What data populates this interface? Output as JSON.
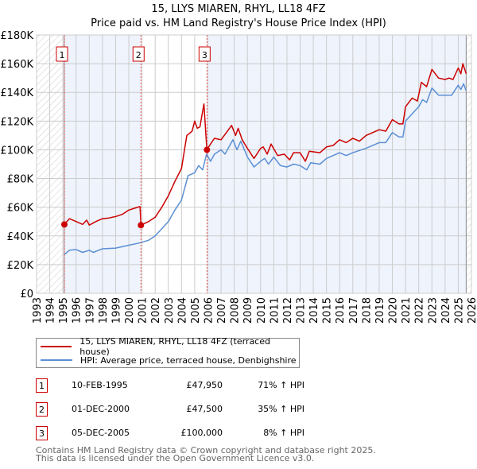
{
  "chart_data": {
    "type": "line",
    "title": "15, LLYS MIAREN, RHYL, LL18 4FZ",
    "subtitle": "Price paid vs. HM Land Registry's House Price Index (HPI)",
    "xlim": [
      1993,
      2026
    ],
    "ylim": [
      0,
      180000
    ],
    "y_ticks": [
      {
        "v": 0,
        "label": "£0"
      },
      {
        "v": 20000,
        "label": "£20K"
      },
      {
        "v": 40000,
        "label": "£40K"
      },
      {
        "v": 60000,
        "label": "£60K"
      },
      {
        "v": 80000,
        "label": "£80K"
      },
      {
        "v": 100000,
        "label": "£100K"
      },
      {
        "v": 120000,
        "label": "£120K"
      },
      {
        "v": 140000,
        "label": "£140K"
      },
      {
        "v": 160000,
        "label": "£160K"
      },
      {
        "v": 180000,
        "label": "£180K"
      }
    ],
    "x_ticks": [
      "1993",
      "1994",
      "1995",
      "1996",
      "1997",
      "1998",
      "1999",
      "2000",
      "2001",
      "2002",
      "2003",
      "2004",
      "2005",
      "2006",
      "2007",
      "2008",
      "2009",
      "2010",
      "2011",
      "2012",
      "2013",
      "2014",
      "2015",
      "2016",
      "2017",
      "2018",
      "2019",
      "2020",
      "2021",
      "2022",
      "2023",
      "2024",
      "2025",
      "2026"
    ],
    "grid": true,
    "data_start": 1995.1,
    "data_end": 2025.6,
    "series": [
      {
        "name": "15, LLYS MIAREN, RHYL, LL18 4FZ (terraced house)",
        "color": "#cc0000",
        "points": [
          [
            1995.1,
            47950
          ],
          [
            1995.5,
            52000
          ],
          [
            1996,
            50000
          ],
          [
            1996.5,
            48000
          ],
          [
            1996.8,
            51000
          ],
          [
            1997,
            47500
          ],
          [
            1997.5,
            50000
          ],
          [
            1998,
            52000
          ],
          [
            1998.5,
            52500
          ],
          [
            1999,
            53500
          ],
          [
            1999.5,
            55000
          ],
          [
            2000,
            58000
          ],
          [
            2000.5,
            59500
          ],
          [
            2000.85,
            60500
          ],
          [
            2000.92,
            47500
          ],
          [
            2001.5,
            50000
          ],
          [
            2002,
            53000
          ],
          [
            2002.5,
            60000
          ],
          [
            2003,
            68000
          ],
          [
            2003.5,
            78000
          ],
          [
            2004,
            87000
          ],
          [
            2004.4,
            110000
          ],
          [
            2004.8,
            113000
          ],
          [
            2005,
            120000
          ],
          [
            2005.2,
            115000
          ],
          [
            2005.4,
            116000
          ],
          [
            2005.7,
            132000
          ],
          [
            2005.92,
            100000
          ],
          [
            2006.2,
            104000
          ],
          [
            2006.5,
            108000
          ],
          [
            2007,
            107000
          ],
          [
            2007.4,
            112000
          ],
          [
            2007.8,
            117000
          ],
          [
            2008.1,
            110000
          ],
          [
            2008.3,
            115000
          ],
          [
            2008.6,
            107000
          ],
          [
            2009,
            101000
          ],
          [
            2009.5,
            94000
          ],
          [
            2010,
            101000
          ],
          [
            2010.2,
            102000
          ],
          [
            2010.5,
            97000
          ],
          [
            2010.8,
            104000
          ],
          [
            2011.3,
            96000
          ],
          [
            2011.8,
            97000
          ],
          [
            2012.2,
            93000
          ],
          [
            2012.5,
            98000
          ],
          [
            2013,
            98000
          ],
          [
            2013.4,
            92000
          ],
          [
            2013.7,
            99000
          ],
          [
            2014.5,
            98000
          ],
          [
            2015,
            102000
          ],
          [
            2015.5,
            103000
          ],
          [
            2016,
            107000
          ],
          [
            2016.5,
            105000
          ],
          [
            2017,
            108000
          ],
          [
            2017.5,
            106000
          ],
          [
            2018,
            110000
          ],
          [
            2018.5,
            112000
          ],
          [
            2019,
            114000
          ],
          [
            2019.5,
            113000
          ],
          [
            2020,
            121000
          ],
          [
            2020.5,
            118000
          ],
          [
            2020.8,
            118000
          ],
          [
            2021,
            130000
          ],
          [
            2021.5,
            136000
          ],
          [
            2021.9,
            134000
          ],
          [
            2022.2,
            147000
          ],
          [
            2022.6,
            144000
          ],
          [
            2023,
            156000
          ],
          [
            2023.5,
            150000
          ],
          [
            2024,
            149000
          ],
          [
            2024.3,
            150000
          ],
          [
            2024.6,
            149000
          ],
          [
            2025,
            157000
          ],
          [
            2025.2,
            153000
          ],
          [
            2025.35,
            160000
          ],
          [
            2025.6,
            153000
          ]
        ]
      },
      {
        "name": "HPI: Average price, terraced house, Denbighshire",
        "color": "#5b8fd4",
        "points": [
          [
            1995.1,
            27000
          ],
          [
            1995.5,
            30000
          ],
          [
            1996,
            30500
          ],
          [
            1996.5,
            28500
          ],
          [
            1997,
            30000
          ],
          [
            1997.3,
            28500
          ],
          [
            1998,
            31000
          ],
          [
            1999,
            31500
          ],
          [
            2000,
            33500
          ],
          [
            2000.9,
            35300
          ],
          [
            2001.5,
            37000
          ],
          [
            2002,
            40000
          ],
          [
            2002.5,
            45000
          ],
          [
            2003,
            50000
          ],
          [
            2003.5,
            58000
          ],
          [
            2004,
            65000
          ],
          [
            2004.5,
            82000
          ],
          [
            2005,
            84000
          ],
          [
            2005.3,
            89000
          ],
          [
            2005.6,
            86000
          ],
          [
            2005.9,
            97000
          ],
          [
            2006.2,
            92000
          ],
          [
            2006.5,
            97000
          ],
          [
            2007,
            100000
          ],
          [
            2007.3,
            97000
          ],
          [
            2007.9,
            107000
          ],
          [
            2008.2,
            100000
          ],
          [
            2008.5,
            106000
          ],
          [
            2009,
            95000
          ],
          [
            2009.5,
            88000
          ],
          [
            2010,
            92000
          ],
          [
            2010.3,
            94000
          ],
          [
            2010.6,
            90000
          ],
          [
            2011,
            95000
          ],
          [
            2011.5,
            89000
          ],
          [
            2012,
            88000
          ],
          [
            2012.5,
            90000
          ],
          [
            2013,
            89000
          ],
          [
            2013.5,
            86000
          ],
          [
            2013.8,
            91000
          ],
          [
            2014.5,
            90000
          ],
          [
            2015,
            94000
          ],
          [
            2016,
            98000
          ],
          [
            2016.5,
            96000
          ],
          [
            2017,
            98000
          ],
          [
            2018,
            101000
          ],
          [
            2019,
            105000
          ],
          [
            2019.5,
            105000
          ],
          [
            2020,
            112000
          ],
          [
            2020.5,
            109000
          ],
          [
            2020.8,
            109000
          ],
          [
            2021,
            120000
          ],
          [
            2021.5,
            125000
          ],
          [
            2022,
            130000
          ],
          [
            2022.3,
            135000
          ],
          [
            2022.6,
            133000
          ],
          [
            2023,
            143000
          ],
          [
            2023.5,
            138000
          ],
          [
            2024,
            138000
          ],
          [
            2024.5,
            138000
          ],
          [
            2025,
            145000
          ],
          [
            2025.2,
            142000
          ],
          [
            2025.4,
            146000
          ],
          [
            2025.6,
            141000
          ]
        ]
      }
    ],
    "sales": [
      {
        "label": "1",
        "x": 1995.11,
        "y": 47950
      },
      {
        "label": "2",
        "x": 2000.92,
        "y": 47500
      },
      {
        "label": "3",
        "x": 2005.93,
        "y": 100000
      }
    ],
    "legend_placement": "below"
  },
  "transactions": [
    {
      "num": "1",
      "date": "10-FEB-1995",
      "price": "£47,950",
      "hpi": "71% ↑ HPI"
    },
    {
      "num": "2",
      "date": "01-DEC-2000",
      "price": "£47,500",
      "hpi": "35% ↑ HPI"
    },
    {
      "num": "3",
      "date": "05-DEC-2005",
      "price": "£100,000",
      "hpi": "8% ↑ HPI"
    }
  ],
  "footer": {
    "line1": "Contains HM Land Registry data © Crown copyright and database right 2025.",
    "line2": "This data is licensed under the Open Government Licence v3.0."
  }
}
